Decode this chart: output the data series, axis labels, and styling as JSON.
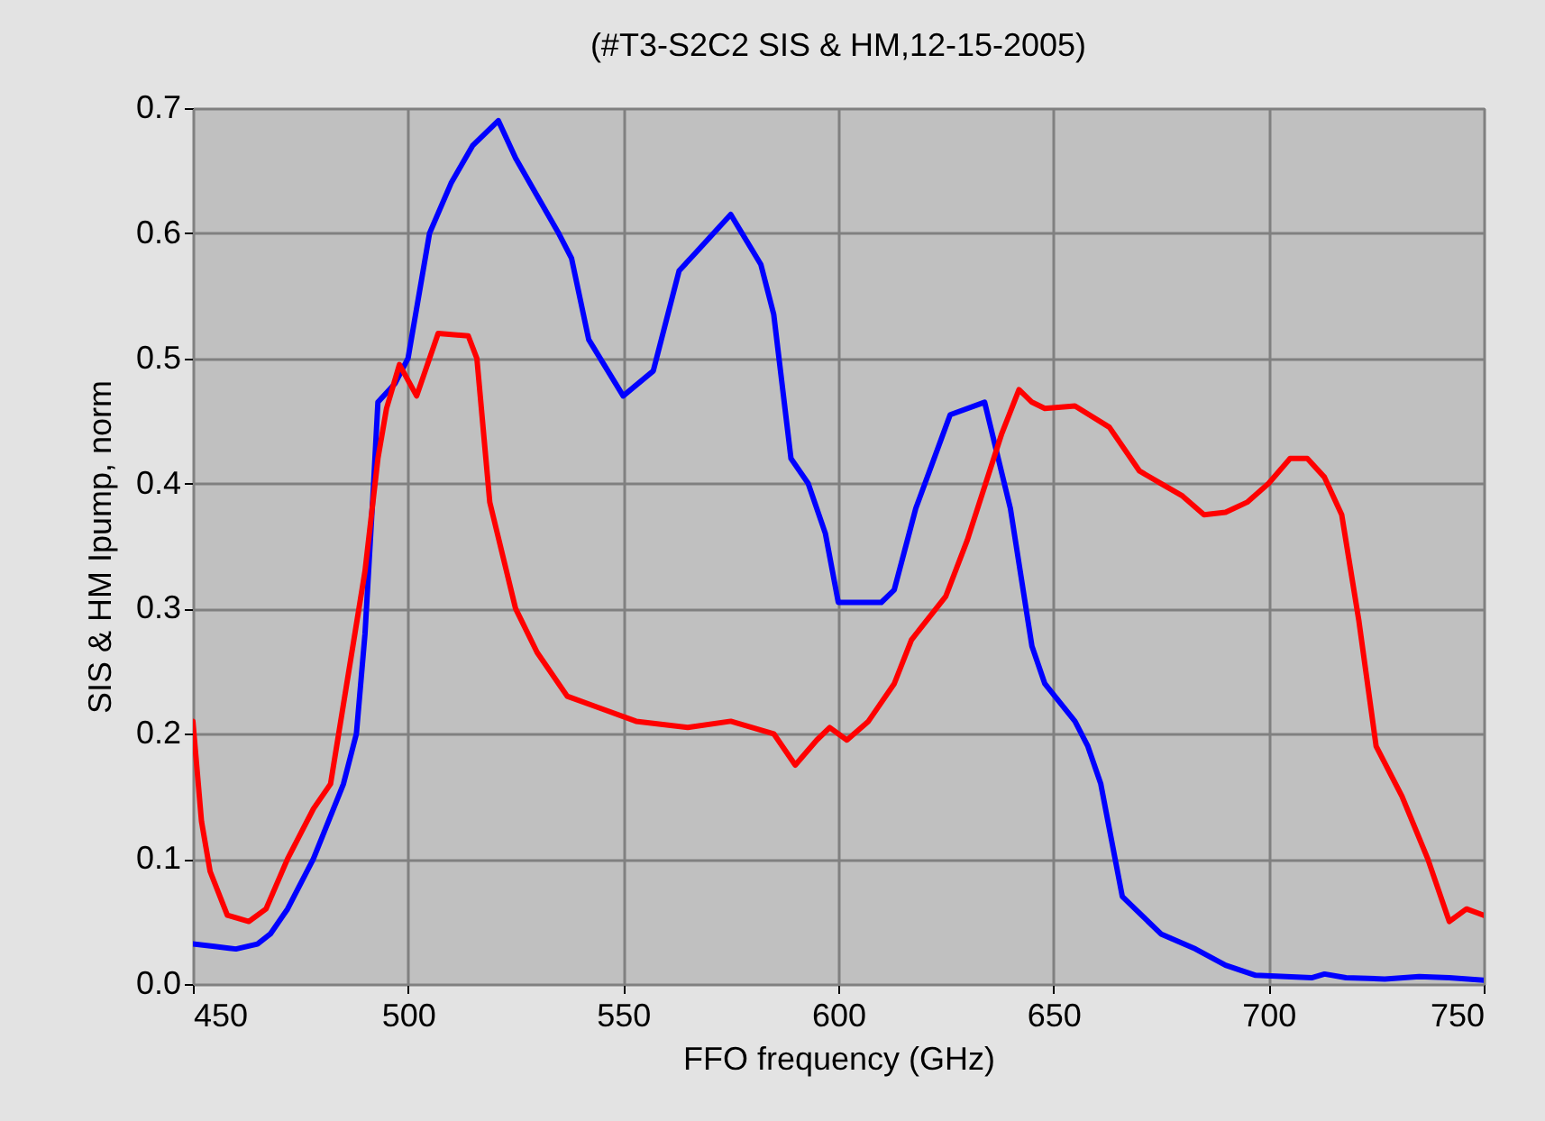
{
  "chart_data": {
    "type": "line",
    "title": "(#T3-S2C2 SIS & HM,12-15-2005)",
    "xlabel": "FFO frequency (GHz)",
    "ylabel": "SIS & HM Ipump, norm",
    "xlim": [
      450,
      750
    ],
    "xticks": [
      450,
      500,
      550,
      600,
      650,
      700,
      750
    ],
    "ylim": [
      0,
      0.7
    ],
    "yticks": [
      {
        "value": 0,
        "label": "0.0"
      },
      0.1,
      0.2,
      0.3,
      0.4,
      0.5,
      0.6,
      0.7
    ],
    "grid": true,
    "line_style": "solid",
    "series": [
      {
        "color": "#0000ff",
        "x": [
          450,
          455,
          460,
          465,
          468,
          472,
          478,
          485,
          488,
          490,
          492,
          493,
          497,
          500,
          505,
          510,
          515,
          521,
          525,
          530,
          535,
          538,
          542,
          550,
          557,
          563,
          567,
          575,
          582,
          585,
          589,
          593,
          597,
          600,
          610,
          613,
          618,
          626,
          634,
          640,
          645,
          648,
          655,
          658,
          661,
          666,
          675,
          683,
          690,
          697,
          710,
          713,
          718,
          727,
          735,
          742,
          750
        ],
        "values": [
          0.032,
          0.03,
          0.028,
          0.032,
          0.04,
          0.06,
          0.1,
          0.16,
          0.2,
          0.28,
          0.4,
          0.465,
          0.48,
          0.5,
          0.6,
          0.64,
          0.67,
          0.69,
          0.66,
          0.63,
          0.6,
          0.58,
          0.515,
          0.47,
          0.49,
          0.57,
          0.585,
          0.615,
          0.575,
          0.535,
          0.42,
          0.4,
          0.36,
          0.305,
          0.305,
          0.315,
          0.38,
          0.455,
          0.465,
          0.38,
          0.27,
          0.24,
          0.21,
          0.19,
          0.16,
          0.07,
          0.04,
          0.028,
          0.015,
          0.007,
          0.005,
          0.008,
          0.005,
          0.004,
          0.006,
          0.005,
          0.003
        ]
      },
      {
        "color": "#ff0000",
        "x": [
          450,
          452,
          454,
          458,
          463,
          467,
          472,
          478,
          482,
          490,
          493,
          495,
          498,
          502,
          507,
          514,
          516,
          519,
          525,
          530,
          537,
          545,
          553,
          565,
          575,
          585,
          590,
          595,
          598,
          602,
          607,
          613,
          617,
          625,
          630,
          638,
          642,
          645,
          648,
          655,
          663,
          670,
          675,
          680,
          685,
          690,
          695,
          700,
          705,
          709,
          713,
          717,
          721,
          725,
          731,
          737,
          742,
          746,
          750
        ],
        "values": [
          0.21,
          0.13,
          0.09,
          0.055,
          0.05,
          0.06,
          0.1,
          0.14,
          0.16,
          0.33,
          0.42,
          0.46,
          0.495,
          0.47,
          0.52,
          0.518,
          0.5,
          0.385,
          0.3,
          0.265,
          0.23,
          0.22,
          0.21,
          0.205,
          0.21,
          0.2,
          0.175,
          0.195,
          0.205,
          0.195,
          0.21,
          0.24,
          0.275,
          0.31,
          0.355,
          0.44,
          0.475,
          0.465,
          0.46,
          0.462,
          0.445,
          0.41,
          0.4,
          0.39,
          0.375,
          0.377,
          0.385,
          0.4,
          0.42,
          0.42,
          0.405,
          0.375,
          0.29,
          0.19,
          0.15,
          0.1,
          0.05,
          0.06,
          0.055
        ]
      }
    ]
  }
}
